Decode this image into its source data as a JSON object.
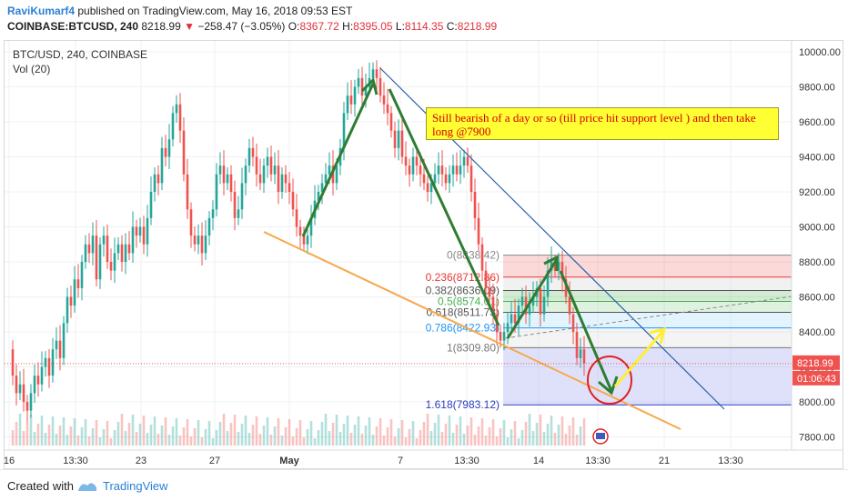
{
  "header": {
    "author": "RaviKumarf4",
    "published": "published on TradingView.com, May 16, 2018 09:53 EST",
    "symbol": "COINBASE:BTCUSD, 240",
    "last": "8218.99",
    "change_arrow": "▼",
    "change": "−258.47 (−3.05%)",
    "o_label": "O:",
    "o_val": "8367.72",
    "h_label": "H:",
    "h_val": "8395.05",
    "l_label": "L:",
    "l_val": "8114.35",
    "c_label": "C:",
    "c_val": "8218.99"
  },
  "pane": {
    "title": "BTC/USD, 240, COINBASE",
    "volume_label": "Vol (20)"
  },
  "note": "Still bearish of a day or so (till price hit support level ) and then take long @7900",
  "price_tags": {
    "last": "8218.99",
    "countdown": "01:06:43"
  },
  "footer": {
    "created": "Created with",
    "brand": "TradingView"
  },
  "colors": {
    "up": "#26a69a",
    "down": "#ef5350",
    "arrow_green": "#2e7d32",
    "arrow_yellow": "#ffee33",
    "trend_orange": "#f7a84b",
    "trend_blue": "#2962a8",
    "circle": "#e02020",
    "tag_red": "#ef5350"
  },
  "chart_data": {
    "type": "candlestick",
    "y_ticks": [
      "10000.00",
      "9800.00",
      "9600.00",
      "9400.00",
      "9200.00",
      "9000.00",
      "8800.00",
      "8600.00",
      "8400.00",
      "8200.00",
      "8000.00",
      "7800.00"
    ],
    "x_ticks": [
      "16",
      "13:30",
      "23",
      "27",
      "May",
      "7",
      "13:30",
      "14",
      "13:30",
      "21",
      "13:30"
    ],
    "ylim": [
      7700,
      10090
    ],
    "fib_levels": [
      {
        "label": "0(8838.42)",
        "value": 8838.42,
        "color": "#888888"
      },
      {
        "label": "0.236(8712.86)",
        "value": 8712.86,
        "color": "#e53935"
      },
      {
        "label": "0.382(8636.09)",
        "value": 8636.09,
        "color": "#555555"
      },
      {
        "label": "0.5(8574.01)",
        "value": 8574.01,
        "color": "#4caf50"
      },
      {
        "label": "0.618(8511.73)",
        "value": 8511.73,
        "color": "#555555"
      },
      {
        "label": "0.786(8422.93)",
        "value": 8422.93,
        "color": "#2196f3"
      },
      {
        "label": "1(8309.80)",
        "value": 8309.8,
        "color": "#777777"
      },
      {
        "label": "1.618(7983.12)",
        "value": 7983.12,
        "color": "#2b3cc2"
      }
    ],
    "last_price": 8218.99
  }
}
